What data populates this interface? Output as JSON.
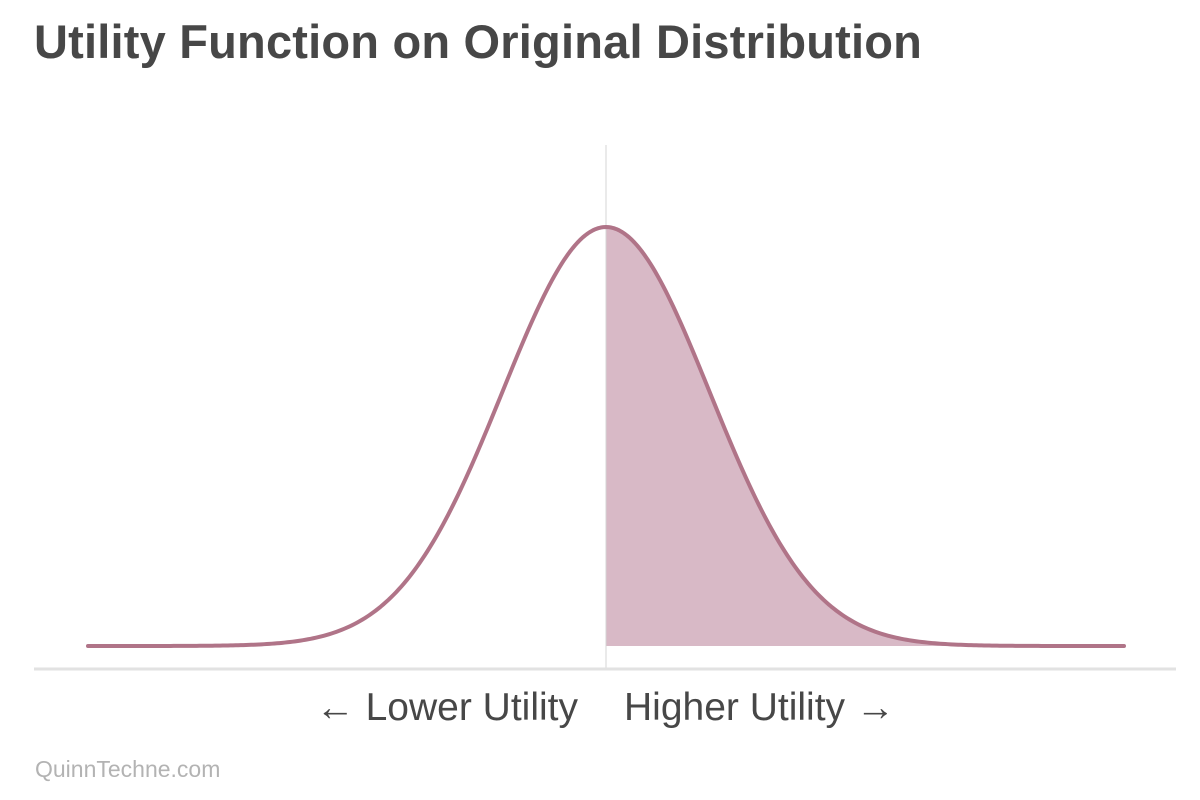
{
  "title": "Utility Function on Original Distribution",
  "watermark": "QuinnTechne.com",
  "colors": {
    "curve": "#b07488",
    "fill": "#d8b9c6",
    "baseline": "#e2e2e2",
    "divider": "#d4d4d4",
    "text": "#474747"
  },
  "chart_data": {
    "type": "area",
    "distribution": "normal",
    "mean": 0,
    "std_dev": 1,
    "xlim": [
      -5,
      5
    ],
    "shaded_region": [
      0,
      5
    ],
    "divider_at": 0,
    "grid": false,
    "legend": "none",
    "x_labels": {
      "left": "← Lower Utility",
      "right": "Higher Utility →"
    }
  }
}
